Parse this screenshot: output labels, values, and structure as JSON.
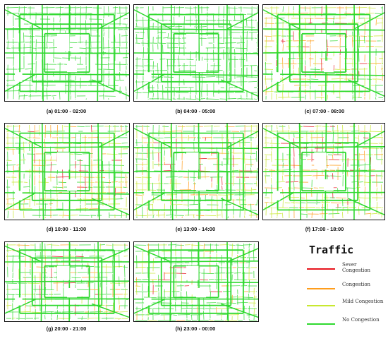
{
  "panels": [
    {
      "caption": "(a) 01:00 - 02:00",
      "level": 0.0
    },
    {
      "caption": "(b) 04:00 - 05:00",
      "level": 0.0
    },
    {
      "caption": "(c) 07:00 - 08:00",
      "level": 0.85
    },
    {
      "caption": "(d) 10:00 - 11:00",
      "level": 0.75
    },
    {
      "caption": "(e) 13:00 - 14:00",
      "level": 0.75
    },
    {
      "caption": "(f) 17:00 - 18:00",
      "level": 0.9
    },
    {
      "caption": "(g) 20:00 - 21:00",
      "level": 0.45
    },
    {
      "caption": "(h) 23:00 - 00:00",
      "level": 0.35
    }
  ],
  "legend": {
    "title": "Traffic",
    "items": [
      {
        "label": "Sever Congestion",
        "color": "#e8141c"
      },
      {
        "label": "Congestion",
        "color": "#ff9d1c"
      },
      {
        "label": "Mild Congestion",
        "color": "#c8e830"
      },
      {
        "label": "No Congestion",
        "color": "#2fd92f"
      }
    ]
  }
}
